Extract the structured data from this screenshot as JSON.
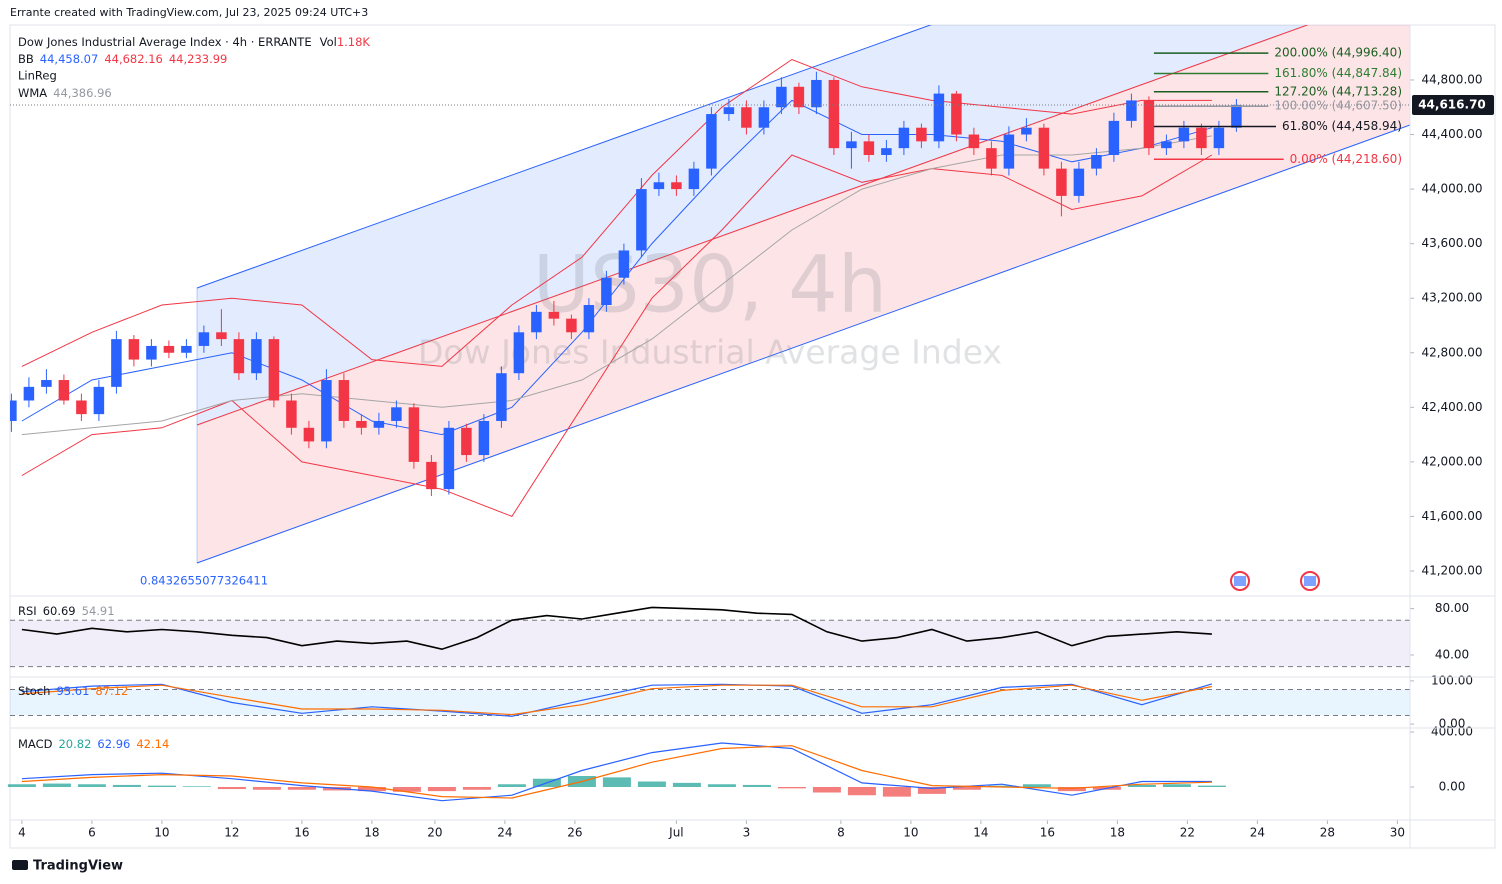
{
  "header": {
    "credit": "Errante created with TradingView.com, Jul 23, 2025 09:24 UTC+3",
    "footer": "TradingView"
  },
  "chart_data": [
    {
      "type": "candlestick",
      "title": "Dow Jones Industrial Average Index · 4h · ERRANTE",
      "volume_label": "Vol",
      "volume": "1.18K",
      "watermark": "US30, 4h",
      "watermark_sub": "Dow Jones Industrial Average Index",
      "legend": [
        {
          "name": "BB",
          "values": [
            "44,458.07",
            "44,682.16",
            "44,233.99"
          ]
        },
        {
          "name": "LinReg"
        },
        {
          "name": "WMA",
          "values": [
            "44,386.96"
          ]
        }
      ],
      "annotation": "0.8432655077326411",
      "up_color": "#2962ff",
      "down_color": "#f23645",
      "x": [
        -0.3,
        0.2,
        0.7,
        1.2,
        1.7,
        2.2,
        2.7,
        3.2,
        3.7,
        4.2,
        4.7,
        5.2,
        5.7,
        6.2,
        6.7,
        7.2,
        7.7,
        8.2,
        8.7,
        9.2,
        9.7,
        10.2,
        10.7,
        11.2,
        11.7,
        12.2,
        12.7,
        13.2,
        13.7,
        14.2,
        14.7,
        15.2,
        15.7,
        16.2,
        16.7,
        17.2,
        17.7,
        18.2,
        18.7,
        19.2,
        19.7,
        20.2,
        20.7,
        21.2,
        21.7,
        22.2,
        22.7,
        23.2,
        23.7,
        24.2,
        24.7,
        25.2,
        25.7,
        26.2,
        26.7,
        27.2,
        27.7,
        28.2,
        28.7,
        29.2,
        29.7,
        30.2,
        30.7,
        31.2,
        31.7,
        32.2,
        32.7,
        33.2,
        33.7,
        34.2,
        34.7
      ],
      "open": [
        42300,
        42450,
        42550,
        42600,
        42450,
        42350,
        42550,
        42900,
        42750,
        42850,
        42800,
        42850,
        42950,
        42900,
        42650,
        42900,
        42450,
        42250,
        42150,
        42600,
        42300,
        42250,
        42300,
        42400,
        42000,
        41800,
        42250,
        42050,
        42300,
        42650,
        42950,
        43100,
        43050,
        42950,
        43150,
        43350,
        43550,
        44000,
        44050,
        44000,
        44150,
        44550,
        44600,
        44450,
        44600,
        44750,
        44600,
        44800,
        44300,
        44350,
        44250,
        44300,
        44450,
        44350,
        44700,
        44400,
        44300,
        44150,
        44400,
        44450,
        44150,
        43950,
        44150,
        44250,
        44500,
        44650,
        44300,
        44350,
        44450,
        44300,
        44450
      ],
      "high": [
        42500,
        42620,
        42680,
        42640,
        42500,
        42600,
        42960,
        42930,
        42900,
        42890,
        42900,
        43000,
        43120,
        42950,
        42950,
        42920,
        42500,
        42300,
        42680,
        42650,
        42350,
        42360,
        42450,
        42430,
        42050,
        42300,
        42280,
        42350,
        42700,
        43000,
        43150,
        43180,
        43080,
        43200,
        43400,
        43600,
        44080,
        44120,
        44100,
        44200,
        44600,
        44660,
        44650,
        44650,
        44820,
        44780,
        44860,
        44820,
        44420,
        44400,
        44360,
        44500,
        44480,
        44760,
        44720,
        44450,
        44350,
        44460,
        44520,
        44480,
        44200,
        44200,
        44300,
        44560,
        44700,
        44680,
        44400,
        44500,
        44480,
        44500,
        44660
      ],
      "low": [
        42220,
        42400,
        42500,
        42420,
        42300,
        42300,
        42500,
        42700,
        42700,
        42760,
        42760,
        42800,
        42850,
        42600,
        42600,
        42400,
        42200,
        42100,
        42100,
        42250,
        42200,
        42200,
        42250,
        41950,
        41750,
        41760,
        42000,
        42000,
        42250,
        42600,
        42900,
        43000,
        42900,
        42900,
        43100,
        43300,
        43500,
        43950,
        43950,
        43950,
        44100,
        44500,
        44400,
        44400,
        44550,
        44550,
        44550,
        44250,
        44150,
        44200,
        44200,
        44250,
        44300,
        44300,
        44350,
        44250,
        44100,
        44100,
        44350,
        44100,
        43800,
        43900,
        44100,
        44200,
        44450,
        44250,
        44250,
        44300,
        44250,
        44250,
        44420
      ],
      "close": [
        42450,
        42550,
        42600,
        42450,
        42350,
        42550,
        42900,
        42750,
        42850,
        42800,
        42850,
        42950,
        42900,
        42650,
        42900,
        42450,
        42250,
        42150,
        42600,
        42300,
        42250,
        42300,
        42400,
        42000,
        41800,
        42250,
        42050,
        42300,
        42650,
        42950,
        43100,
        43050,
        42950,
        43150,
        43350,
        43550,
        44000,
        44050,
        44000,
        44150,
        44550,
        44600,
        44450,
        44600,
        44750,
        44600,
        44800,
        44300,
        44350,
        44250,
        44300,
        44450,
        44350,
        44700,
        44400,
        44300,
        44150,
        44400,
        44450,
        44150,
        43950,
        44150,
        44250,
        44500,
        44650,
        44300,
        44350,
        44450,
        44300,
        44450,
        44617
      ],
      "overlays": [
        {
          "color": "#f23645",
          "x": [
            0,
            2,
            4,
            6,
            8,
            10,
            12,
            14,
            16,
            18,
            20,
            22,
            24,
            26,
            28,
            30,
            32,
            34
          ],
          "values": [
            42700,
            42950,
            43150,
            43200,
            43150,
            42750,
            42700,
            43150,
            43500,
            44100,
            44600,
            44950,
            44750,
            44650,
            44600,
            44550,
            44650,
            44650
          ]
        },
        {
          "color": "#f23645",
          "x": [
            0,
            2,
            4,
            6,
            8,
            10,
            12,
            14,
            16,
            18,
            20,
            22,
            24,
            26,
            28,
            30,
            32,
            34
          ],
          "values": [
            41900,
            42200,
            42250,
            42450,
            42000,
            41900,
            41800,
            41600,
            42400,
            43200,
            43700,
            44250,
            44050,
            44150,
            44100,
            43850,
            43950,
            44250
          ]
        },
        {
          "color": "#2962ff",
          "x": [
            0,
            2,
            4,
            6,
            8,
            10,
            12,
            14,
            16,
            18,
            20,
            22,
            24,
            26,
            28,
            30,
            32,
            34
          ],
          "values": [
            42300,
            42600,
            42700,
            42800,
            42600,
            42300,
            42200,
            42400,
            42950,
            43600,
            44150,
            44650,
            44400,
            44400,
            44350,
            44200,
            44300,
            44450
          ]
        },
        {
          "color": "#a5a5a5",
          "x": [
            0,
            2,
            4,
            6,
            8,
            10,
            12,
            14,
            16,
            18,
            20,
            22,
            24,
            26,
            28,
            30,
            32,
            34
          ],
          "values": [
            42200,
            42250,
            42300,
            42450,
            42500,
            42450,
            42400,
            42450,
            42600,
            42900,
            43300,
            43700,
            44000,
            44150,
            44250,
            44250,
            44300,
            44390
          ]
        }
      ],
      "levels": [
        {
          "value": 44996.4,
          "label": "200.00% (44,996.40)",
          "color": "#1b5e20"
        },
        {
          "value": 44847.84,
          "label": "161.80% (44,847.84)",
          "color": "#2e7d32"
        },
        {
          "value": 44713.28,
          "label": "127.20% (44,713.28)",
          "color": "#1b5e20"
        },
        {
          "value": 44607.5,
          "label": "100.00% (44,607.50)",
          "color": "#9598a1"
        },
        {
          "value": 44458.94,
          "label": "61.80% (44,458.94)",
          "color": "#131722"
        },
        {
          "value": 44218.6,
          "label": "0.00% (44,218.60)",
          "color": "#f23645"
        }
      ],
      "last": {
        "value": 44616.7,
        "label": "44,616.70",
        "color": "#131722"
      },
      "xlim": [
        -0.34,
        39.66
      ],
      "ylim": [
        41024,
        45203
      ],
      "yticks": [
        {
          "value": 41200,
          "label": "41,200.00"
        },
        {
          "value": 41600,
          "label": "41,600.00"
        },
        {
          "value": 42000,
          "label": "42,000.00"
        },
        {
          "value": 42400,
          "label": "42,400.00"
        },
        {
          "value": 42800,
          "label": "42,800.00"
        },
        {
          "value": 43200,
          "label": "43,200.00"
        },
        {
          "value": 43600,
          "label": "43,600.00"
        },
        {
          "value": 44000,
          "label": "44,000.00"
        },
        {
          "value": 44400,
          "label": "44,400.00"
        },
        {
          "value": 44800,
          "label": "44,800.00"
        }
      ]
    },
    {
      "type": "line",
      "legend_name": "RSI",
      "legend_values": [
        "60.69",
        "54.91"
      ],
      "series": [
        {
          "color": "#000000",
          "x": [
            0,
            1,
            2,
            3,
            4,
            5,
            6,
            7,
            8,
            9,
            10,
            11,
            12,
            13,
            14,
            15,
            16,
            17,
            18,
            19,
            20,
            21,
            22,
            23,
            24,
            25,
            26,
            27,
            28,
            29,
            30,
            31,
            32,
            33,
            34
          ],
          "values": [
            62,
            58,
            63,
            60,
            62,
            60,
            57,
            55,
            48,
            52,
            50,
            52,
            45,
            55,
            70,
            74,
            71,
            76,
            81,
            80,
            79,
            76,
            75,
            60,
            52,
            55,
            62,
            52,
            55,
            60,
            48,
            56,
            58,
            60,
            58
          ]
        }
      ],
      "bands": [
        30,
        70
      ],
      "band_color": "#7e57c2",
      "xlim": [
        -0.34,
        39.66
      ],
      "ylim": [
        21,
        90
      ],
      "yticks": [
        {
          "value": 40,
          "label": "40.00"
        },
        {
          "value": 80,
          "label": "80.00"
        }
      ]
    },
    {
      "type": "line",
      "legend_name": "Stoch",
      "legend_values": [
        "93.61",
        "87.12"
      ],
      "series": [
        {
          "color": "#2962ff",
          "x": [
            0,
            2,
            4,
            6,
            8,
            10,
            12,
            14,
            16,
            18,
            20,
            22,
            24,
            26,
            28,
            30,
            32,
            34
          ],
          "values": [
            75,
            88,
            92,
            50,
            25,
            40,
            30,
            18,
            55,
            90,
            92,
            88,
            25,
            45,
            85,
            92,
            45,
            93
          ]
        },
        {
          "color": "#ff6d00",
          "x": [
            0,
            2,
            4,
            6,
            8,
            10,
            12,
            14,
            16,
            18,
            20,
            22,
            24,
            26,
            28,
            30,
            32,
            34
          ],
          "values": [
            70,
            82,
            90,
            62,
            35,
            35,
            32,
            22,
            45,
            82,
            90,
            90,
            40,
            40,
            78,
            90,
            55,
            87
          ]
        }
      ],
      "bands": [
        20,
        80
      ],
      "band_color": "#2196f3",
      "xlim": [
        -0.34,
        39.66
      ],
      "ylim": [
        -9,
        109
      ],
      "yticks": [
        {
          "value": 0,
          "label": "0.00"
        },
        {
          "value": 100,
          "label": "100.00"
        }
      ]
    },
    {
      "type": "macd",
      "legend_name": "MACD",
      "legend_values": [
        "20.82",
        "62.96",
        "42.14"
      ],
      "series": [
        {
          "color": "#2962ff",
          "x": [
            0,
            2,
            4,
            6,
            8,
            10,
            12,
            14,
            16,
            18,
            20,
            22,
            24,
            26,
            28,
            30,
            32,
            34
          ],
          "values": [
            60,
            90,
            100,
            60,
            10,
            -30,
            -100,
            -60,
            120,
            250,
            320,
            280,
            30,
            -10,
            20,
            -60,
            40,
            40
          ]
        },
        {
          "color": "#ff6d00",
          "x": [
            0,
            2,
            4,
            6,
            8,
            10,
            12,
            14,
            16,
            18,
            20,
            22,
            24,
            26,
            28,
            30,
            32,
            34
          ],
          "values": [
            40,
            70,
            90,
            80,
            30,
            0,
            -70,
            -80,
            40,
            180,
            280,
            300,
            120,
            10,
            0,
            -10,
            20,
            35
          ]
        }
      ],
      "histogram": {
        "up_color": "#26a69a",
        "down_color": "#ef5350",
        "x": [
          0,
          1,
          2,
          3,
          4,
          5,
          6,
          7,
          8,
          9,
          10,
          11,
          12,
          13,
          14,
          15,
          16,
          17,
          18,
          19,
          20,
          21,
          22,
          23,
          24,
          25,
          26,
          27,
          28,
          29,
          30,
          31,
          32,
          33,
          34
        ],
        "values": [
          20,
          25,
          20,
          15,
          10,
          5,
          -15,
          -20,
          -20,
          -25,
          -30,
          -35,
          -30,
          -20,
          20,
          60,
          80,
          70,
          40,
          30,
          20,
          15,
          -10,
          -40,
          -60,
          -70,
          -50,
          -20,
          10,
          20,
          -30,
          -20,
          15,
          20,
          10
        ]
      },
      "xlim": [
        -0.34,
        39.66
      ],
      "ylim": [
        -240,
        429
      ],
      "yticks": [
        {
          "value": 0,
          "label": "0.00"
        },
        {
          "value": 400,
          "label": "400.00"
        }
      ],
      "xticks": [
        {
          "value": 0,
          "label": "4"
        },
        {
          "value": 2,
          "label": "6"
        },
        {
          "value": 4,
          "label": "10"
        },
        {
          "value": 6,
          "label": "12"
        },
        {
          "value": 8,
          "label": "16"
        },
        {
          "value": 10,
          "label": "18"
        },
        {
          "value": 11.8,
          "label": "20"
        },
        {
          "value": 13.8,
          "label": "24"
        },
        {
          "value": 15.8,
          "label": "26"
        },
        {
          "value": 18.7,
          "label": "Jul"
        },
        {
          "value": 20.7,
          "label": "3"
        },
        {
          "value": 23.4,
          "label": "8"
        },
        {
          "value": 25.4,
          "label": "10"
        },
        {
          "value": 27.4,
          "label": "14"
        },
        {
          "value": 29.3,
          "label": "16"
        },
        {
          "value": 31.3,
          "label": "18"
        },
        {
          "value": 33.3,
          "label": "22"
        },
        {
          "value": 35.3,
          "label": "24"
        },
        {
          "value": 37.3,
          "label": "28"
        },
        {
          "value": 39.3,
          "label": "30"
        }
      ]
    }
  ]
}
